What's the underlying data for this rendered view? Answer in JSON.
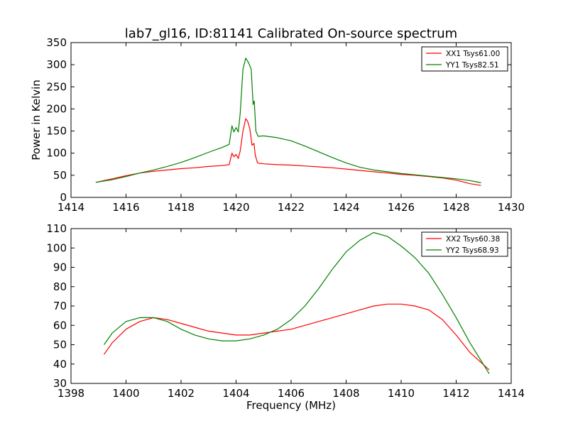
{
  "chart_data": [
    {
      "type": "line",
      "title": "lab7_gl16, ID:81141 Calibrated On-source spectrum",
      "xlabel": "",
      "ylabel": "Power in Kelvin",
      "xlim": [
        1414,
        1430
      ],
      "ylim": [
        0,
        350
      ],
      "xticks": [
        "1414",
        "1416",
        "1418",
        "1420",
        "1422",
        "1424",
        "1426",
        "1428",
        "1430"
      ],
      "yticks": [
        "0",
        "50",
        "100",
        "150",
        "200",
        "250",
        "300",
        "350"
      ],
      "grid": false,
      "legend": "top-right",
      "series": [
        {
          "name": "XX1 Tsys61.00",
          "color": "#ff0000",
          "x": [
            1414.9,
            1415.5,
            1416,
            1416.5,
            1417,
            1417.5,
            1418,
            1418.5,
            1419,
            1419.5,
            1419.75,
            1419.85,
            1419.92,
            1420.0,
            1420.08,
            1420.15,
            1420.25,
            1420.35,
            1420.42,
            1420.5,
            1420.58,
            1420.65,
            1420.7,
            1420.78,
            1420.85,
            1421,
            1421.5,
            1422,
            1422.5,
            1423,
            1423.5,
            1424,
            1424.5,
            1425,
            1425.5,
            1426,
            1426.5,
            1427,
            1427.5,
            1428,
            1428.5,
            1428.9
          ],
          "values": [
            34,
            42,
            49,
            55,
            59,
            62,
            65,
            67,
            70,
            72,
            74,
            100,
            92,
            97,
            88,
            105,
            150,
            178,
            172,
            155,
            118,
            122,
            95,
            78,
            77,
            76,
            74,
            73,
            71,
            69,
            67,
            64,
            61,
            58,
            55,
            52,
            50,
            47,
            44,
            39,
            31,
            27
          ]
        },
        {
          "name": "YY1 Tsys82.51",
          "color": "#008000",
          "x": [
            1414.9,
            1415.5,
            1416,
            1416.5,
            1417,
            1417.5,
            1418,
            1418.5,
            1419,
            1419.5,
            1419.75,
            1419.85,
            1419.92,
            1420.0,
            1420.08,
            1420.15,
            1420.25,
            1420.35,
            1420.45,
            1420.55,
            1420.62,
            1420.66,
            1420.72,
            1420.8,
            1421,
            1421.5,
            1422,
            1422.5,
            1423,
            1423.5,
            1424,
            1424.5,
            1425,
            1425.5,
            1426,
            1426.5,
            1427,
            1427.5,
            1428,
            1428.5,
            1428.9
          ],
          "values": [
            34,
            40,
            47,
            55,
            62,
            70,
            79,
            90,
            102,
            113,
            120,
            162,
            148,
            158,
            148,
            190,
            290,
            315,
            305,
            290,
            210,
            218,
            150,
            138,
            139,
            135,
            128,
            116,
            103,
            90,
            78,
            68,
            62,
            58,
            54,
            51,
            48,
            45,
            42,
            38,
            33
          ]
        }
      ]
    },
    {
      "type": "line",
      "title": "",
      "xlabel": "Frequency (MHz)",
      "ylabel": "",
      "xlim": [
        1398,
        1414
      ],
      "ylim": [
        30,
        110
      ],
      "xticks": [
        "1398",
        "1400",
        "1402",
        "1404",
        "1406",
        "1408",
        "1410",
        "1412",
        "1414"
      ],
      "yticks": [
        "30",
        "40",
        "50",
        "60",
        "70",
        "80",
        "90",
        "100",
        "110"
      ],
      "grid": false,
      "legend": "top-right",
      "series": [
        {
          "name": "XX2 Tsys60.38",
          "color": "#ff0000",
          "x": [
            1399.2,
            1399.5,
            1400,
            1400.5,
            1401,
            1401.5,
            1402,
            1402.5,
            1403,
            1403.5,
            1404,
            1404.5,
            1405,
            1405.5,
            1406,
            1406.5,
            1407,
            1407.5,
            1408,
            1408.5,
            1409,
            1409.5,
            1410,
            1410.5,
            1411,
            1411.5,
            1412,
            1412.5,
            1413.2
          ],
          "values": [
            45,
            51,
            58,
            62,
            64,
            63,
            61,
            59,
            57,
            56,
            55,
            55,
            56,
            57,
            58,
            60,
            62,
            64,
            66,
            68,
            70,
            71,
            71,
            70,
            68,
            63,
            55,
            46,
            37
          ]
        },
        {
          "name": "YY2 Tsys68.93",
          "color": "#008000",
          "x": [
            1399.2,
            1399.5,
            1400,
            1400.5,
            1401,
            1401.5,
            1402,
            1402.5,
            1403,
            1403.5,
            1404,
            1404.5,
            1405,
            1405.5,
            1406,
            1406.5,
            1407,
            1407.5,
            1408,
            1408.5,
            1409,
            1409.5,
            1410,
            1410.5,
            1411,
            1411.5,
            1412,
            1412.5,
            1413.2
          ],
          "values": [
            50,
            56,
            62,
            64,
            64,
            62,
            58,
            55,
            53,
            52,
            52,
            53,
            55,
            58,
            63,
            70,
            79,
            89,
            98,
            104,
            108,
            106,
            101,
            95,
            87,
            76,
            64,
            51,
            35
          ]
        }
      ]
    }
  ]
}
